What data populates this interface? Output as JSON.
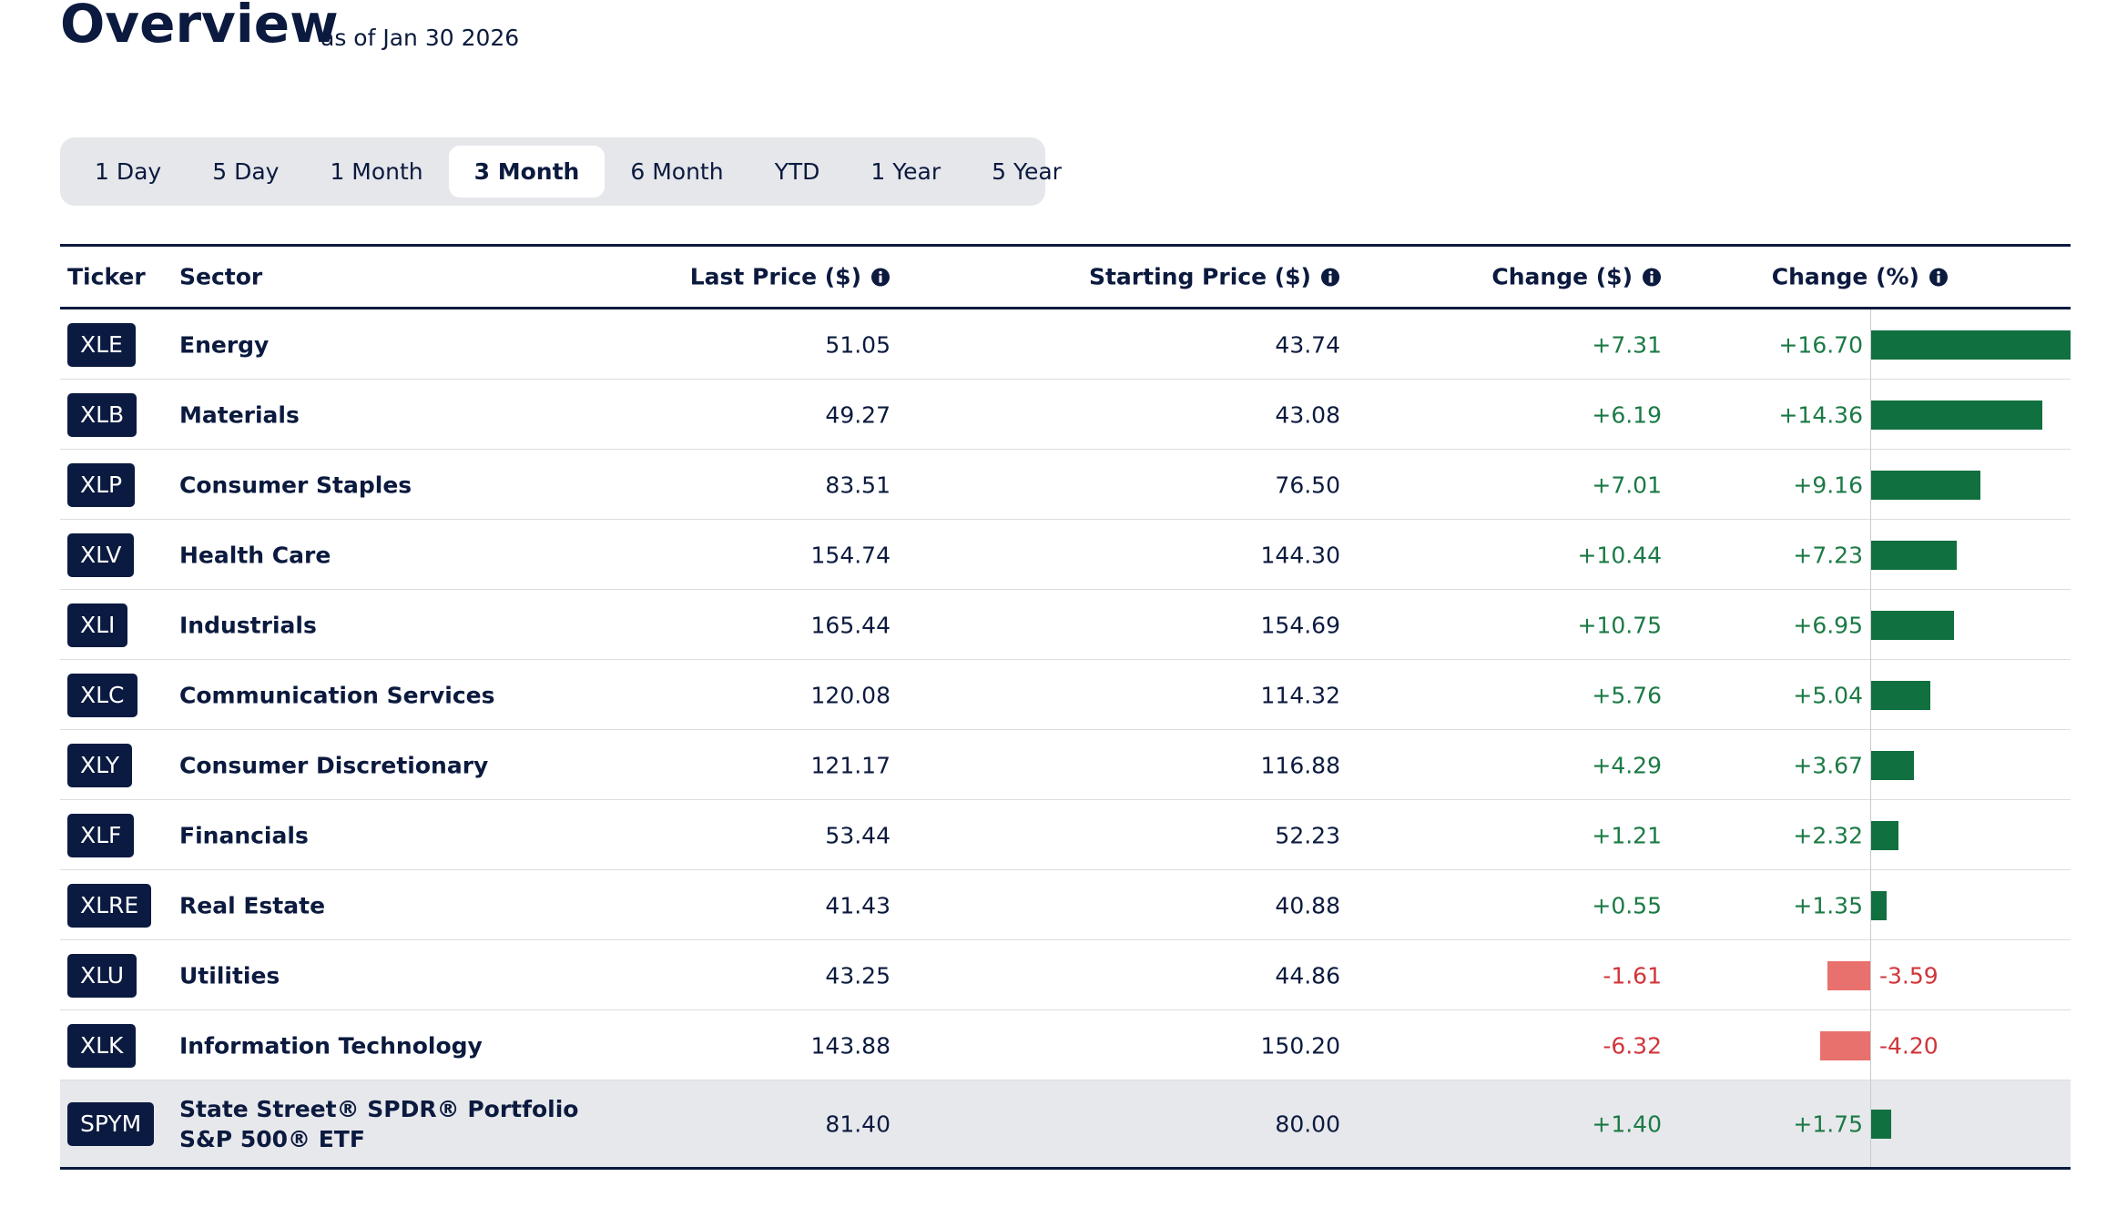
{
  "header": {
    "title": "Overview",
    "subtitle": "as of Jan 30 2026"
  },
  "tabs": {
    "items": [
      "1 Day",
      "5 Day",
      "1 Month",
      "3 Month",
      "6 Month",
      "YTD",
      "1 Year",
      "5 Year"
    ],
    "active": 3
  },
  "table": {
    "columns": [
      "Ticker",
      "Sector",
      "Last Price ($)",
      "Starting Price ($)",
      "Change ($)",
      "Change (%)"
    ],
    "rows": [
      {
        "ticker": "XLE",
        "sector": "Energy",
        "last_price": "51.05",
        "starting_price": "43.74",
        "change": "+7.31",
        "change_pct": 16.7,
        "change_pct_label": "+16.70"
      },
      {
        "ticker": "XLB",
        "sector": "Materials",
        "last_price": "49.27",
        "starting_price": "43.08",
        "change": "+6.19",
        "change_pct": 14.36,
        "change_pct_label": "+14.36"
      },
      {
        "ticker": "XLP",
        "sector": "Consumer Staples",
        "last_price": "83.51",
        "starting_price": "76.50",
        "change": "+7.01",
        "change_pct": 9.16,
        "change_pct_label": "+9.16"
      },
      {
        "ticker": "XLV",
        "sector": "Health Care",
        "last_price": "154.74",
        "starting_price": "144.30",
        "change": "+10.44",
        "change_pct": 7.23,
        "change_pct_label": "+7.23"
      },
      {
        "ticker": "XLI",
        "sector": "Industrials",
        "last_price": "165.44",
        "starting_price": "154.69",
        "change": "+10.75",
        "change_pct": 6.95,
        "change_pct_label": "+6.95"
      },
      {
        "ticker": "XLC",
        "sector": "Communication Services",
        "last_price": "120.08",
        "starting_price": "114.32",
        "change": "+5.76",
        "change_pct": 5.04,
        "change_pct_label": "+5.04"
      },
      {
        "ticker": "XLY",
        "sector": "Consumer Discretionary",
        "last_price": "121.17",
        "starting_price": "116.88",
        "change": "+4.29",
        "change_pct": 3.67,
        "change_pct_label": "+3.67"
      },
      {
        "ticker": "XLF",
        "sector": "Financials",
        "last_price": "53.44",
        "starting_price": "52.23",
        "change": "+1.21",
        "change_pct": 2.32,
        "change_pct_label": "+2.32"
      },
      {
        "ticker": "XLRE",
        "sector": "Real Estate",
        "last_price": "41.43",
        "starting_price": "40.88",
        "change": "+0.55",
        "change_pct": 1.35,
        "change_pct_label": "+1.35"
      },
      {
        "ticker": "XLU",
        "sector": "Utilities",
        "last_price": "43.25",
        "starting_price": "44.86",
        "change": "-1.61",
        "change_pct": -3.59,
        "change_pct_label": "-3.59"
      },
      {
        "ticker": "XLK",
        "sector": "Information Technology",
        "last_price": "143.88",
        "starting_price": "150.20",
        "change": "-6.32",
        "change_pct": -4.2,
        "change_pct_label": "-4.20"
      },
      {
        "ticker": "SPYM",
        "sector": "State Street® SPDR® Portfolio\nS&P 500® ETF",
        "last_price": "81.40",
        "starting_price": "80.00",
        "change": "+1.40",
        "change_pct": 1.75,
        "change_pct_label": "+1.75"
      }
    ]
  }
}
